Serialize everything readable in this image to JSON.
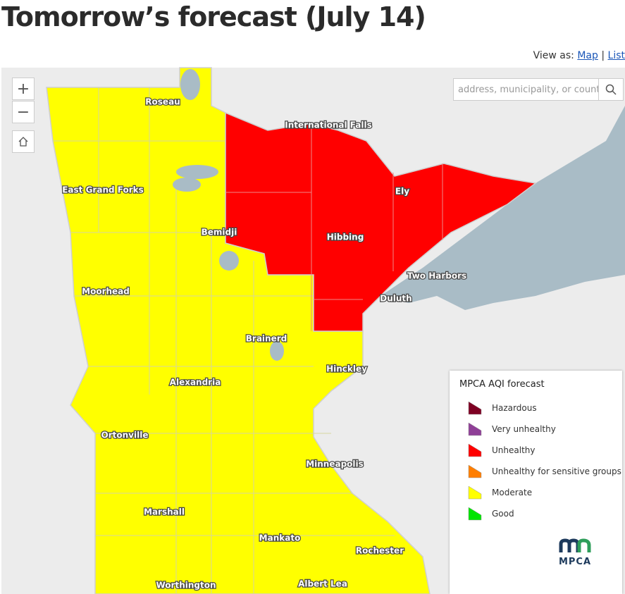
{
  "header": {
    "title": "Tomorrow’s forecast (July 14)"
  },
  "view_as": {
    "label": "View as:",
    "options": [
      "Map",
      "List"
    ]
  },
  "search": {
    "placeholder": "address, municipality, or count"
  },
  "map": {
    "cities": [
      "Roseau",
      "International Falls",
      "East Grand Forks",
      "Ely",
      "Bemidji",
      "Hibbing",
      "Two Harbors",
      "Moorhead",
      "Duluth",
      "Brainerd",
      "Hinckley",
      "Alexandria",
      "Ortonville",
      "Minneapolis",
      "Marshall",
      "Mankato",
      "Rochester",
      "Worthington",
      "Albert Lea"
    ]
  },
  "legend": {
    "title": "MPCA AQI forecast",
    "items": [
      {
        "label": "Hazardous",
        "color": "#7e0023"
      },
      {
        "label": "Very unhealthy",
        "color": "#8f3f97"
      },
      {
        "label": "Unhealthy",
        "color": "#ff0000"
      },
      {
        "label": "Unhealthy for sensitive groups",
        "color": "#ff7e00"
      },
      {
        "label": "Moderate",
        "color": "#ffff00"
      },
      {
        "label": "Good",
        "color": "#00e400"
      }
    ]
  },
  "logo": {
    "text": "MPCA"
  }
}
